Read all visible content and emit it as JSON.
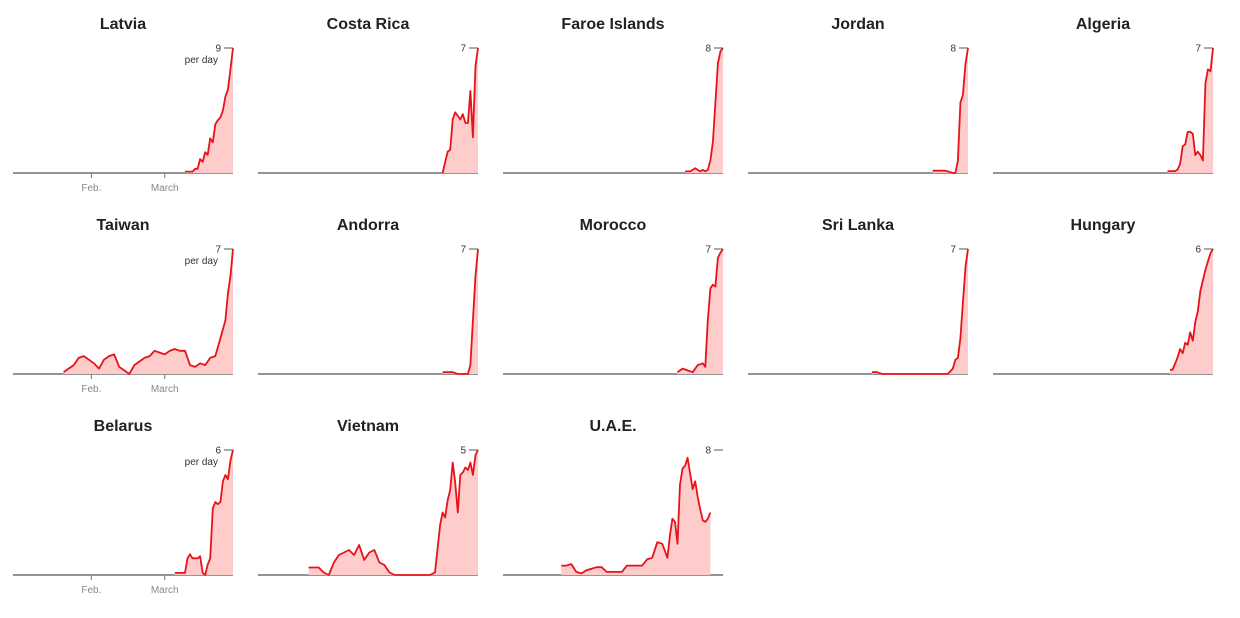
{
  "chart_data": [
    {
      "type": "area",
      "title": "Latvia",
      "y_top_label": "9",
      "unit_label": "per day",
      "ylim": [
        0,
        9
      ],
      "x_labels": [
        "Feb.",
        "March"
      ],
      "x": [
        69,
        71,
        72,
        73,
        74,
        75,
        76,
        77,
        78,
        79,
        80,
        81,
        82,
        83,
        84,
        85,
        86,
        87,
        88
      ],
      "y": [
        0.1,
        0.1,
        0.1,
        0.3,
        0.3,
        1,
        0.8,
        1.5,
        1.3,
        2.5,
        2.2,
        3.5,
        3.8,
        4,
        4.5,
        5.5,
        6,
        7.5,
        9
      ]
    },
    {
      "type": "area",
      "title": "Costa Rica",
      "y_top_label": "7",
      "ylim": [
        0,
        7
      ],
      "x": [
        74,
        75,
        76,
        77,
        78,
        79,
        80,
        81,
        82,
        83,
        84,
        85,
        86,
        87,
        88
      ],
      "y": [
        0,
        0.6,
        1.2,
        1.3,
        3,
        3.4,
        3.2,
        3,
        3.3,
        2.8,
        2.8,
        4.6,
        2,
        6,
        7
      ]
    },
    {
      "type": "area",
      "title": "Faroe Islands",
      "y_top_label": "8",
      "ylim": [
        0,
        8
      ],
      "x": [
        73,
        74,
        75,
        76,
        77,
        78,
        79,
        80,
        81,
        82,
        83,
        84,
        85,
        86,
        87,
        88
      ],
      "y": [
        0.1,
        0.1,
        0.1,
        0.2,
        0.3,
        0.2,
        0.1,
        0.2,
        0.1,
        0.2,
        0.8,
        2,
        4.5,
        7,
        7.8,
        8
      ]
    },
    {
      "type": "area",
      "title": "Jordan",
      "y_top_label": "8",
      "ylim": [
        0,
        8
      ],
      "x": [
        74,
        75,
        76,
        77,
        78,
        79,
        80,
        81,
        82,
        83,
        84,
        85,
        86,
        87,
        88
      ],
      "y": [
        0.15,
        0.15,
        0.15,
        0.15,
        0.15,
        0.15,
        0.1,
        0.05,
        0,
        0,
        0.8,
        4.5,
        5,
        7,
        8
      ]
    },
    {
      "type": "area",
      "title": "Algeria",
      "y_top_label": "7",
      "ylim": [
        0,
        7
      ],
      "x": [
        70,
        71,
        72,
        73,
        74,
        75,
        76,
        77,
        78,
        79,
        80,
        81,
        82,
        83,
        84,
        85,
        86,
        87,
        88
      ],
      "y": [
        0.1,
        0.1,
        0.1,
        0.1,
        0.2,
        0.5,
        1.5,
        1.6,
        2.3,
        2.3,
        2.2,
        1,
        1.2,
        1,
        0.7,
        5,
        5.8,
        5.7,
        7
      ]
    },
    {
      "type": "area",
      "title": "Taiwan",
      "y_top_label": "7",
      "unit_label": "per day",
      "ylim": [
        0,
        7
      ],
      "x_labels": [
        "Feb.",
        "March"
      ],
      "x": [
        21,
        23,
        25,
        27,
        29,
        31,
        33,
        35,
        37,
        39,
        41,
        43,
        45,
        47,
        49,
        51,
        53,
        55,
        57,
        59,
        61,
        63,
        65,
        67,
        69,
        71,
        73,
        75,
        77,
        79,
        81,
        83,
        85,
        86,
        87,
        88
      ],
      "y": [
        0.1,
        0.3,
        0.5,
        0.9,
        1,
        0.8,
        0.6,
        0.3,
        0.8,
        1,
        1.1,
        0.4,
        0.2,
        0,
        0.5,
        0.7,
        0.9,
        1,
        1.3,
        1.2,
        1.1,
        1.3,
        1.4,
        1.3,
        1.3,
        0.5,
        0.4,
        0.6,
        0.5,
        0.9,
        1,
        2,
        3,
        4.5,
        5.5,
        7
      ]
    },
    {
      "type": "area",
      "title": "Andorra",
      "y_top_label": "7",
      "ylim": [
        0,
        7
      ],
      "x": [
        74,
        76,
        78,
        80,
        82,
        84,
        85,
        86,
        87,
        88
      ],
      "y": [
        0.1,
        0.1,
        0.1,
        0,
        0,
        0,
        0.5,
        3,
        5.5,
        7
      ]
    },
    {
      "type": "area",
      "title": "Morocco",
      "y_top_label": "7",
      "ylim": [
        0,
        7
      ],
      "x": [
        70,
        72,
        74,
        76,
        78,
        80,
        81,
        82,
        83,
        84,
        85,
        86,
        87,
        88
      ],
      "y": [
        0.1,
        0.3,
        0.2,
        0.1,
        0.5,
        0.6,
        0.4,
        3,
        4.8,
        5,
        4.9,
        6.5,
        6.8,
        7
      ]
    },
    {
      "type": "area",
      "title": "Sri Lanka",
      "y_top_label": "7",
      "ylim": [
        0,
        7
      ],
      "x": [
        50,
        52,
        54,
        56,
        58,
        60,
        62,
        64,
        66,
        68,
        70,
        72,
        74,
        76,
        78,
        80,
        82,
        83,
        84,
        85,
        86,
        87,
        88
      ],
      "y": [
        0.1,
        0.1,
        0,
        0,
        0,
        0,
        0,
        0,
        0,
        0,
        0,
        0,
        0,
        0,
        0,
        0,
        0.3,
        0.8,
        0.9,
        2,
        4,
        6,
        7
      ]
    },
    {
      "type": "area",
      "title": "Hungary",
      "y_top_label": "6",
      "ylim": [
        0,
        6
      ],
      "x": [
        71,
        72,
        73,
        74,
        75,
        76,
        77,
        78,
        79,
        80,
        81,
        82,
        83,
        84,
        85,
        86,
        87,
        88
      ],
      "y": [
        0.2,
        0.2,
        0.5,
        0.8,
        1.2,
        1,
        1.5,
        1.4,
        2,
        1.6,
        2.5,
        3,
        4,
        4.5,
        5,
        5.4,
        5.8,
        6
      ]
    },
    {
      "type": "area",
      "title": "Belarus",
      "y_top_label": "6",
      "unit_label": "per day",
      "ylim": [
        0,
        6
      ],
      "x_labels": [
        "Feb.",
        "March"
      ],
      "x": [
        65,
        66,
        67,
        68,
        69,
        70,
        71,
        72,
        73,
        74,
        75,
        76,
        77,
        78,
        79,
        80,
        81,
        82,
        83,
        84,
        85,
        86,
        87,
        88
      ],
      "y": [
        0.1,
        0.1,
        0.1,
        0.1,
        0.1,
        0.8,
        1,
        0.8,
        0.8,
        0.8,
        0.9,
        0.1,
        0,
        0.5,
        0.8,
        3.2,
        3.5,
        3.4,
        3.5,
        4.5,
        4.8,
        4.6,
        5.5,
        6
      ]
    },
    {
      "type": "area",
      "title": "Vietnam",
      "y_top_label": "5",
      "ylim": [
        0,
        5
      ],
      "x": [
        21,
        23,
        25,
        27,
        29,
        31,
        33,
        35,
        37,
        39,
        41,
        43,
        45,
        47,
        49,
        51,
        53,
        55,
        57,
        59,
        61,
        63,
        65,
        67,
        69,
        71,
        73,
        74,
        75,
        76,
        77,
        78,
        79,
        80,
        81,
        82,
        83,
        84,
        85,
        86,
        87,
        88
      ],
      "y": [
        0.3,
        0.3,
        0.3,
        0.1,
        0,
        0.5,
        0.8,
        0.9,
        1,
        0.8,
        1.2,
        0.6,
        0.9,
        1,
        0.5,
        0.4,
        0.1,
        0,
        0,
        0,
        0,
        0,
        0,
        0,
        0,
        0.1,
        2,
        2.5,
        2.3,
        3,
        3.4,
        4.5,
        3.7,
        2.5,
        4,
        4.1,
        4.3,
        4.2,
        4.5,
        4,
        4.8,
        5
      ]
    },
    {
      "type": "area",
      "title": "U.A.E.",
      "y_top_label": "8",
      "ylim": [
        0,
        8
      ],
      "x": [
        24,
        26,
        28,
        30,
        32,
        34,
        36,
        38,
        40,
        42,
        44,
        46,
        48,
        50,
        52,
        54,
        56,
        58,
        60,
        62,
        64,
        66,
        67,
        68,
        69,
        70,
        71,
        72,
        73,
        74,
        75,
        76,
        77,
        78,
        79,
        80,
        81,
        82,
        83
      ],
      "y": [
        0.6,
        0.6,
        0.7,
        0.2,
        0.1,
        0.3,
        0.4,
        0.5,
        0.5,
        0.2,
        0.2,
        0.2,
        0.2,
        0.6,
        0.6,
        0.6,
        0.6,
        1,
        1.1,
        2.1,
        2,
        1.1,
        2.5,
        3.6,
        3.4,
        2,
        5.8,
        6.8,
        7,
        7.5,
        6.5,
        5.5,
        6,
        5,
        4.2,
        3.5,
        3.4,
        3.6,
        4
      ]
    }
  ]
}
